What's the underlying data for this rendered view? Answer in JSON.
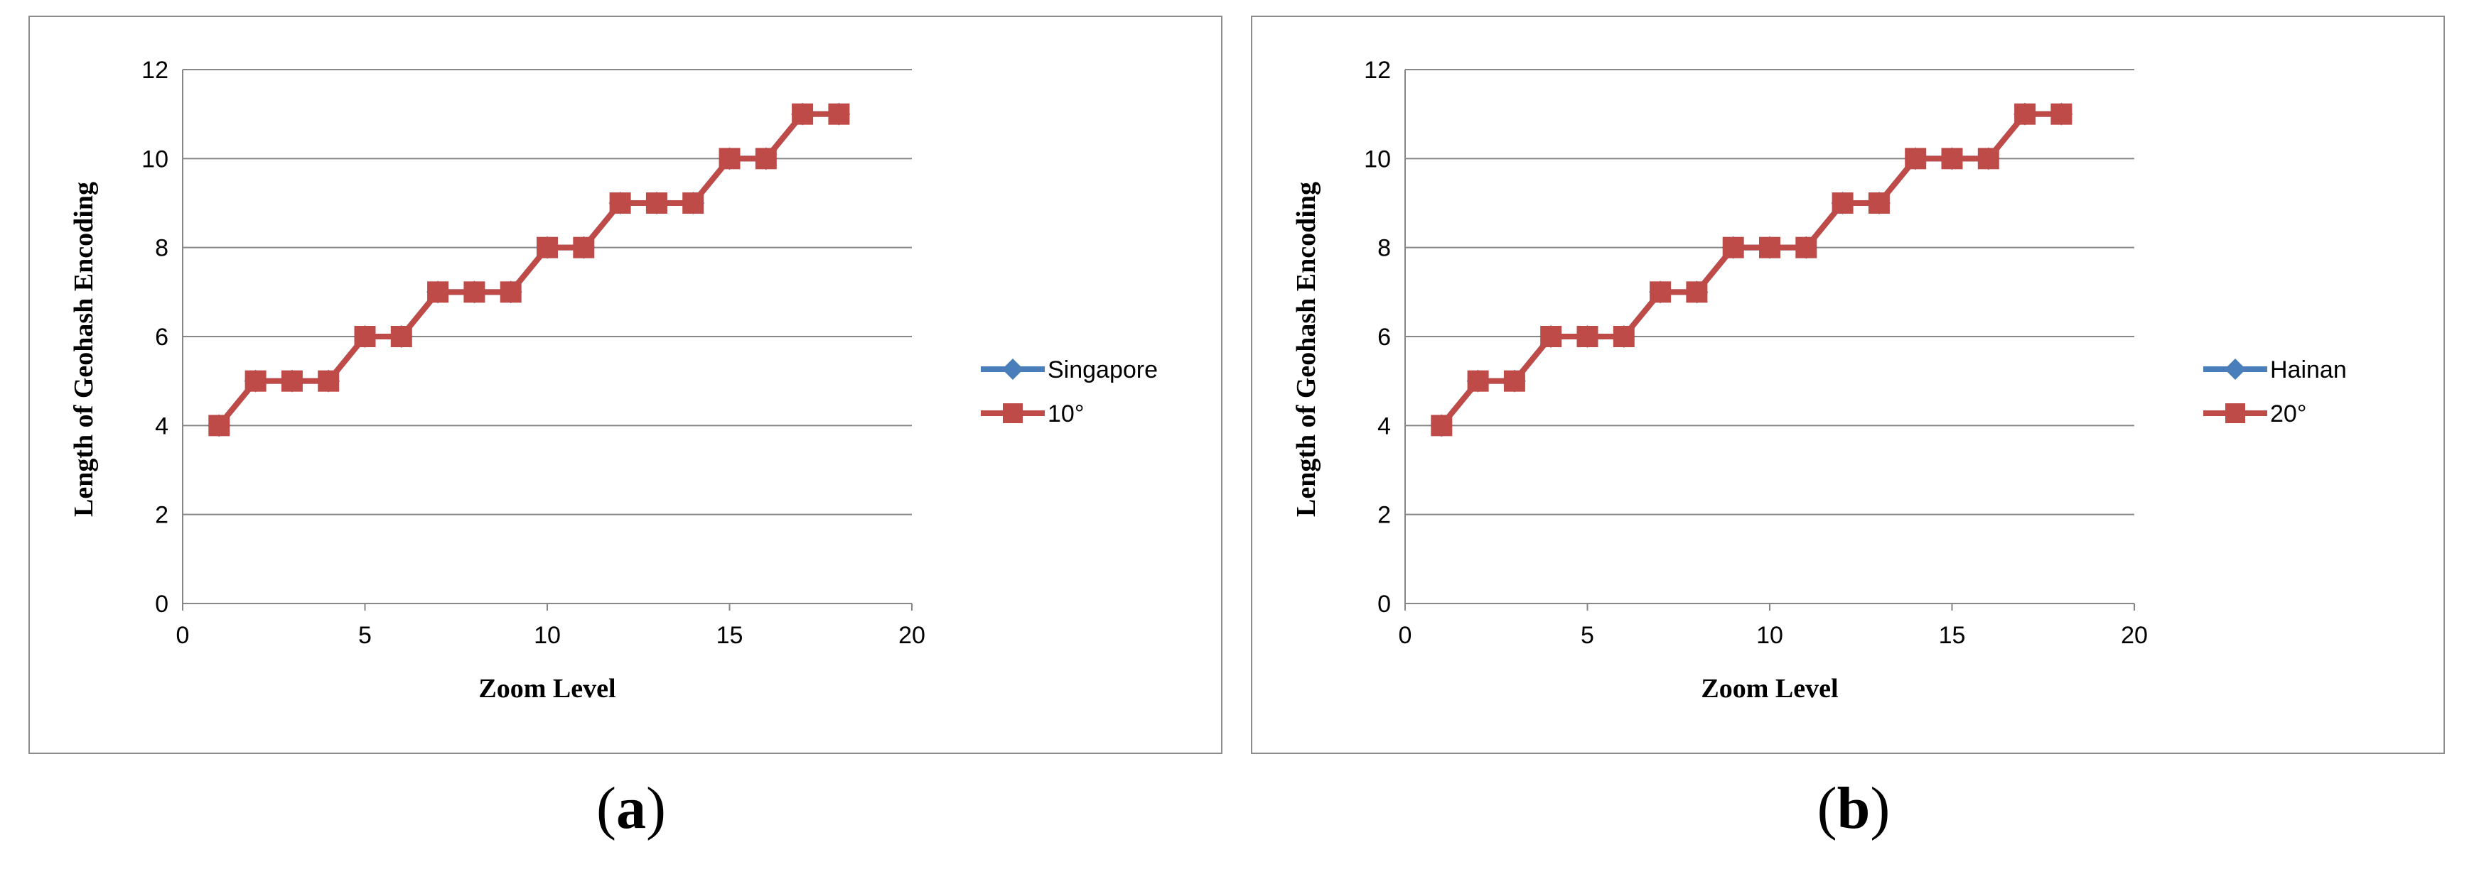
{
  "chart_data": [
    {
      "type": "line",
      "panel": "a",
      "title": "",
      "xlabel": "Zoom  Level",
      "ylabel": "Length of Geohash Encoding",
      "xlim": [
        0,
        20
      ],
      "ylim": [
        0,
        12
      ],
      "xticks": [
        0,
        5,
        10,
        15,
        20
      ],
      "yticks": [
        0,
        2,
        4,
        6,
        8,
        10,
        12
      ],
      "grid": "horizontal",
      "legend_position": "right",
      "series": [
        {
          "name": "Singapore",
          "color": "#4a7ebb",
          "marker": "diamond",
          "x": [
            1,
            2,
            3,
            4,
            5,
            6,
            7,
            8,
            9,
            10,
            11,
            12,
            13,
            14,
            15,
            16,
            17,
            18
          ],
          "y": [
            4,
            5,
            5,
            5,
            6,
            6,
            7,
            7,
            7,
            8,
            8,
            9,
            9,
            9,
            10,
            10,
            11,
            11
          ]
        },
        {
          "name": "10°",
          "color": "#be4b48",
          "marker": "square",
          "x": [
            1,
            2,
            3,
            4,
            5,
            6,
            7,
            8,
            9,
            10,
            11,
            12,
            13,
            14,
            15,
            16,
            17,
            18
          ],
          "y": [
            4,
            5,
            5,
            5,
            6,
            6,
            7,
            7,
            7,
            8,
            8,
            9,
            9,
            9,
            10,
            10,
            11,
            11
          ]
        }
      ]
    },
    {
      "type": "line",
      "panel": "b",
      "title": "",
      "xlabel": "Zoom  Level",
      "ylabel": "Length of Geohash Encoding",
      "xlim": [
        0,
        20
      ],
      "ylim": [
        0,
        12
      ],
      "xticks": [
        0,
        5,
        10,
        15,
        20
      ],
      "yticks": [
        0,
        2,
        4,
        6,
        8,
        10,
        12
      ],
      "grid": "horizontal",
      "legend_position": "right",
      "series": [
        {
          "name": "Hainan",
          "color": "#4a7ebb",
          "marker": "diamond",
          "x": [
            1,
            2,
            3,
            4,
            5,
            6,
            7,
            8,
            9,
            10,
            11,
            12,
            13,
            14,
            15,
            16,
            17,
            18
          ],
          "y": [
            4,
            5,
            5,
            6,
            6,
            6,
            7,
            7,
            8,
            8,
            8,
            9,
            9,
            10,
            10,
            10,
            11,
            11
          ]
        },
        {
          "name": "20°",
          "color": "#be4b48",
          "marker": "square",
          "x": [
            1,
            2,
            3,
            4,
            5,
            6,
            7,
            8,
            9,
            10,
            11,
            12,
            13,
            14,
            15,
            16,
            17,
            18
          ],
          "y": [
            4,
            5,
            5,
            6,
            6,
            6,
            7,
            7,
            8,
            8,
            8,
            9,
            9,
            10,
            10,
            10,
            11,
            11
          ]
        }
      ]
    }
  ],
  "captions": {
    "a": {
      "open": "(",
      "letter": "a",
      "close": ")"
    },
    "b": {
      "open": "(",
      "letter": "b",
      "close": ")"
    }
  },
  "style": {
    "grid_color": "#868686",
    "axis_color": "#868686",
    "frame_color": "#8c8c8c"
  }
}
